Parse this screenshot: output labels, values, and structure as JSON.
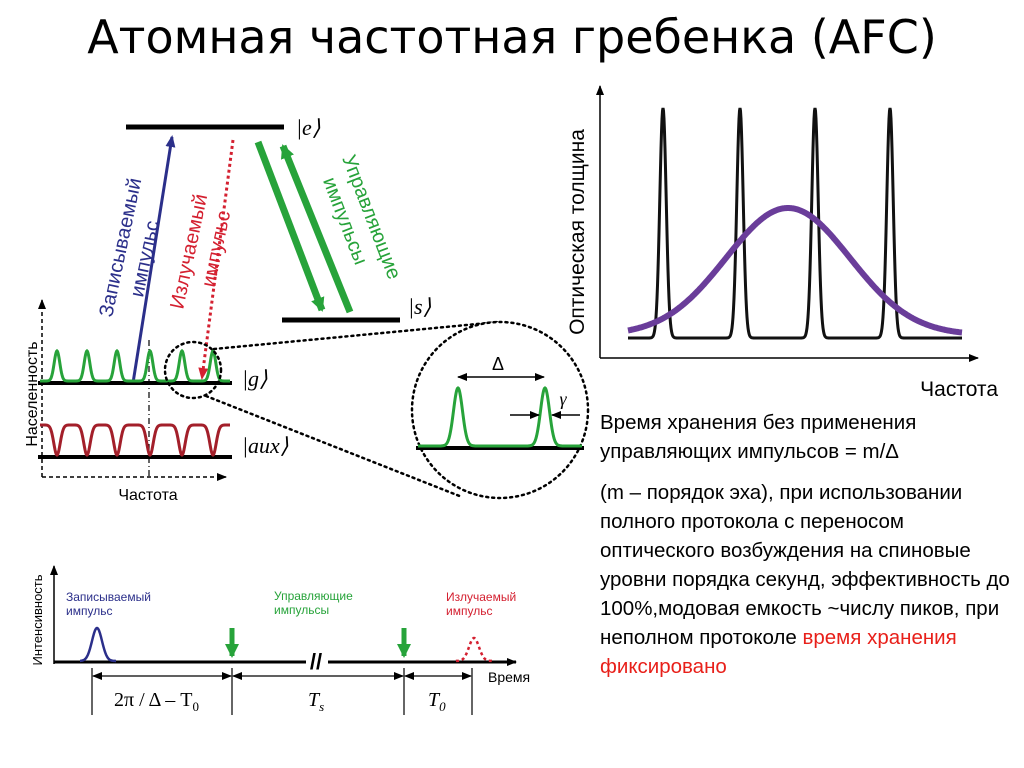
{
  "title": "Атомная частотная гребенка (AFC)",
  "energy_diagram": {
    "level_e": "|e⟩",
    "level_s": "|s⟩",
    "level_g": "|g⟩",
    "level_aux": "|aux⟩",
    "write_pulse": [
      "Записываемый",
      "импульс"
    ],
    "emitted_pulse": [
      "Излучаемый",
      "импульс"
    ],
    "control_pulses": [
      "Управляющие",
      "импульсы"
    ],
    "y_axis": "Населенность",
    "x_axis": "Частота",
    "zoom_delta": "Δ",
    "zoom_gamma": "γ"
  },
  "od_plot": {
    "y_axis": "Оптическая толщина",
    "x_axis": "Частота"
  },
  "timeline": {
    "y_axis": "Интенсивность",
    "x_axis": "Время",
    "write_pulse": [
      "Записываемый",
      "импульс"
    ],
    "control_pulses": [
      "Управляющие",
      "импульсы"
    ],
    "emitted_pulse": [
      "Излучаемый",
      "импульс"
    ],
    "interval1": "2π / Δ – T",
    "interval1_sub": "0",
    "interval2": "T",
    "interval2_sub": "s",
    "interval3": "T",
    "interval3_sub": "0"
  },
  "text": {
    "p1": "Время хранения без применения управляющих импульсов = m/Δ",
    "p2": "(m – порядок эха), при использовании полного протокола с переносом оптического возбуждения на спиновые уровни порядка секунд, эффективность до 100%,модовая емкость ~числу пиков, при неполном протоколе",
    "p2_red": "время хранения фиксировано"
  },
  "colors": {
    "write": "#2b2f8a",
    "emitted": "#d42030",
    "control": "#27a33a",
    "aux_line": "#a31f2a",
    "gaussian": "#6a3d9a",
    "highlight_text": "#e8201a"
  }
}
